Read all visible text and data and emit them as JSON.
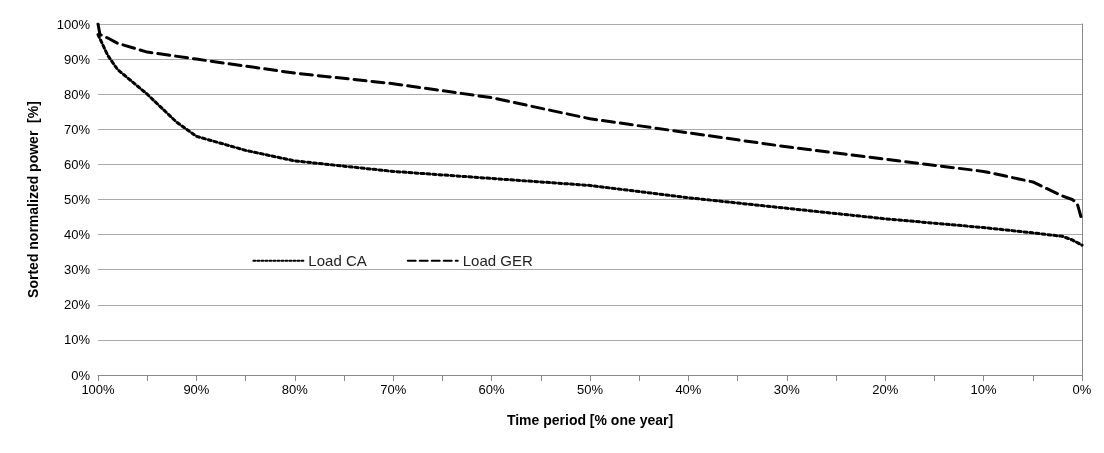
{
  "chart_data": {
    "type": "line",
    "xlabel": "Time period [% one year]",
    "ylabel": "Sorted normalized power  [%]",
    "xlim": [
      100,
      0
    ],
    "ylim": [
      0,
      100
    ],
    "xticks": [
      {
        "value": 100,
        "label": "100%"
      },
      {
        "value": 95,
        "label": null
      },
      {
        "value": 90,
        "label": "90%"
      },
      {
        "value": 85,
        "label": null
      },
      {
        "value": 80,
        "label": "80%"
      },
      {
        "value": 75,
        "label": null
      },
      {
        "value": 70,
        "label": "70%"
      },
      {
        "value": 65,
        "label": null
      },
      {
        "value": 60,
        "label": "60%"
      },
      {
        "value": 55,
        "label": null
      },
      {
        "value": 50,
        "label": "50%"
      },
      {
        "value": 45,
        "label": null
      },
      {
        "value": 40,
        "label": "40%"
      },
      {
        "value": 35,
        "label": null
      },
      {
        "value": 30,
        "label": "30%"
      },
      {
        "value": 25,
        "label": null
      },
      {
        "value": 20,
        "label": "20%"
      },
      {
        "value": 15,
        "label": null
      },
      {
        "value": 10,
        "label": "10%"
      },
      {
        "value": 5,
        "label": null
      },
      {
        "value": 0,
        "label": "0%"
      }
    ],
    "yticks": [
      {
        "value": 0,
        "label": "0%"
      },
      {
        "value": 10,
        "label": "10%"
      },
      {
        "value": 20,
        "label": "20%"
      },
      {
        "value": 30,
        "label": "30%"
      },
      {
        "value": 40,
        "label": "40%"
      },
      {
        "value": 50,
        "label": "50%"
      },
      {
        "value": 60,
        "label": "60%"
      },
      {
        "value": 70,
        "label": "70%"
      },
      {
        "value": 80,
        "label": "80%"
      },
      {
        "value": 90,
        "label": "90%"
      },
      {
        "value": 100,
        "label": "100%"
      }
    ],
    "grid": "y",
    "legend": "center",
    "marker": "none",
    "series": [
      {
        "name": "Load CA",
        "color": "#000000",
        "line_style": "dotted",
        "x": [
          100,
          99,
          98,
          95,
          92,
          90,
          85,
          80,
          75,
          70,
          60,
          50,
          40,
          30,
          20,
          10,
          5,
          2,
          1,
          0
        ],
        "values": [
          97,
          91,
          87,
          80,
          72,
          68,
          64,
          61,
          59.5,
          58,
          56,
          54,
          50.5,
          47.5,
          44.5,
          42,
          40.5,
          39.5,
          38.5,
          37
        ]
      },
      {
        "name": "Load GER",
        "color": "#000000",
        "line_style": "dashed",
        "x": [
          100,
          99.8,
          99,
          98,
          95,
          90,
          80,
          70,
          60,
          50,
          40,
          30,
          20,
          10,
          5,
          2,
          1,
          0.5,
          0
        ],
        "values": [
          100,
          97,
          96,
          94.5,
          92,
          90,
          86,
          83,
          79,
          73,
          69,
          65,
          61.5,
          58,
          55,
          51,
          50,
          49,
          44
        ]
      }
    ]
  }
}
